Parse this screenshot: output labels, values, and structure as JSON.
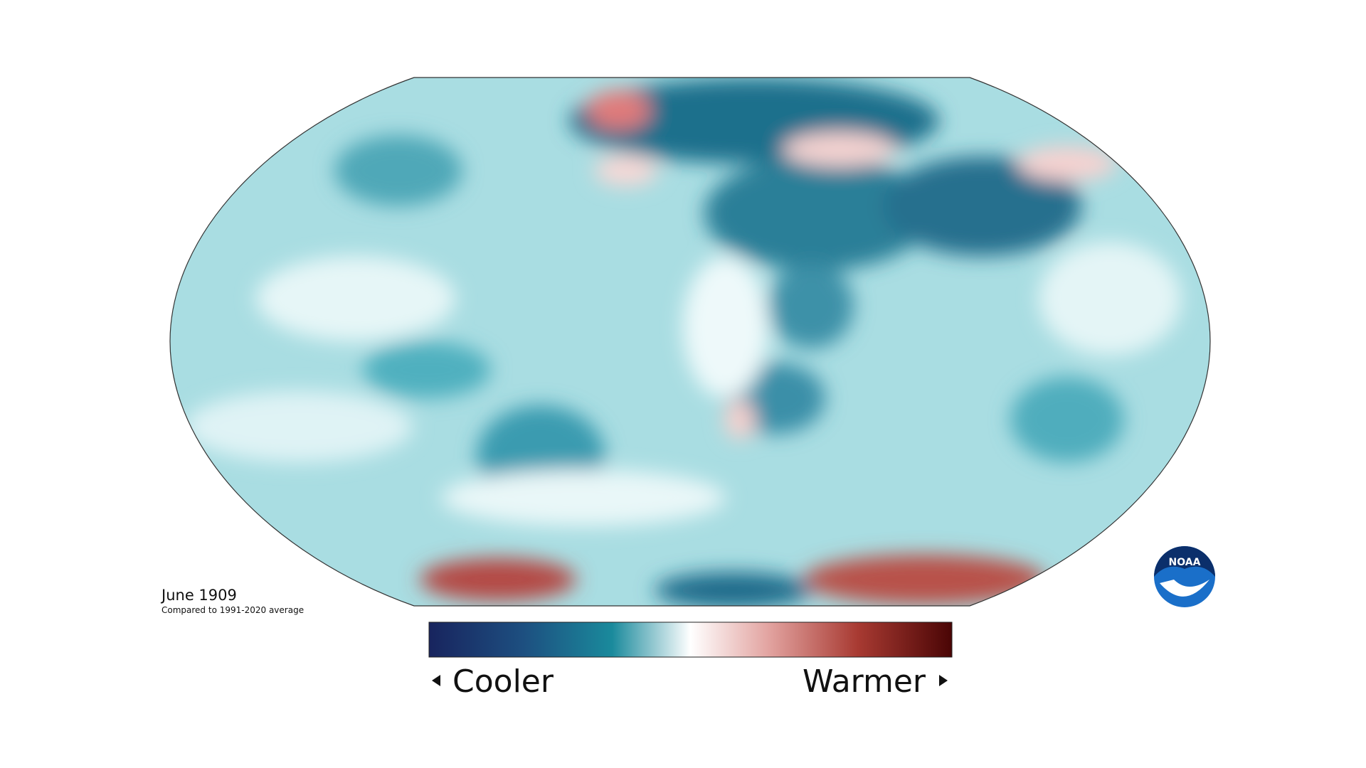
{
  "map": {
    "title": "June 1909",
    "subtitle": "Compared to 1991-2020 average"
  },
  "legend": {
    "low": "Cooler",
    "high": "Warmer"
  },
  "logo": {
    "text": "NOAA"
  }
}
